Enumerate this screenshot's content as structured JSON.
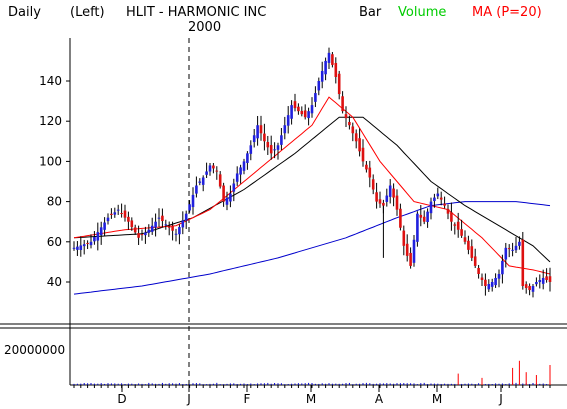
{
  "header": {
    "period": "Daily",
    "axis_side": "(Left)",
    "title": "HLIT - HARMONIC INC",
    "year_label": "2000",
    "legend": [
      {
        "label": "Bar",
        "color": "#000000"
      },
      {
        "label": "Volume",
        "color": "#00cc00"
      },
      {
        "label": "MA (P=20)",
        "color": "#ff0000"
      }
    ]
  },
  "colors": {
    "up": "#2020dd",
    "down": "#dd1010",
    "wick": "#000000",
    "ma_short": "#ff0000",
    "ma_mid": "#000000",
    "ma_long": "#0000cc",
    "volume": "#0000cc",
    "volume_spike": "#ff0000"
  },
  "chart_data": {
    "type": "candlestick",
    "title": "HLIT - HARMONIC INC",
    "x_months": [
      "D",
      "J",
      "F",
      "M",
      "A",
      "M",
      "J"
    ],
    "y_ticks": [
      40,
      60,
      80,
      100,
      120,
      140
    ],
    "ylim": [
      24,
      160
    ],
    "volume_tick": "20000000",
    "volume_ylim": [
      0,
      40000000
    ],
    "grid": false,
    "anchors": [
      [
        0,
        57
      ],
      [
        5,
        60
      ],
      [
        10,
        72
      ],
      [
        13,
        76
      ],
      [
        16,
        70
      ],
      [
        19,
        62
      ],
      [
        22,
        66
      ],
      [
        25,
        72
      ],
      [
        28,
        67
      ],
      [
        30,
        64
      ],
      [
        33,
        74
      ],
      [
        36,
        88
      ],
      [
        38,
        92
      ],
      [
        40,
        98
      ],
      [
        42,
        95
      ],
      [
        44,
        80
      ],
      [
        46,
        84
      ],
      [
        48,
        94
      ],
      [
        50,
        100
      ],
      [
        52,
        108
      ],
      [
        54,
        118
      ],
      [
        56,
        110
      ],
      [
        58,
        104
      ],
      [
        60,
        108
      ],
      [
        62,
        118
      ],
      [
        64,
        128
      ],
      [
        66,
        125
      ],
      [
        68,
        122
      ],
      [
        70,
        128
      ],
      [
        72,
        140
      ],
      [
        74,
        150
      ],
      [
        75,
        154
      ],
      [
        77,
        142
      ],
      [
        79,
        125
      ],
      [
        81,
        118
      ],
      [
        83,
        110
      ],
      [
        85,
        100
      ],
      [
        87,
        92
      ],
      [
        89,
        80
      ],
      [
        91,
        78
      ],
      [
        93,
        88
      ],
      [
        95,
        76
      ],
      [
        97,
        58
      ],
      [
        99,
        48
      ],
      [
        101,
        74
      ],
      [
        103,
        70
      ],
      [
        105,
        80
      ],
      [
        107,
        84
      ],
      [
        109,
        78
      ],
      [
        111,
        70
      ],
      [
        113,
        66
      ],
      [
        115,
        60
      ],
      [
        117,
        52
      ],
      [
        119,
        44
      ],
      [
        121,
        38
      ],
      [
        123,
        40
      ],
      [
        125,
        44
      ],
      [
        127,
        57
      ],
      [
        129,
        56
      ],
      [
        131,
        60
      ],
      [
        132,
        38
      ],
      [
        134,
        36
      ],
      [
        136,
        40
      ],
      [
        138,
        42
      ],
      [
        140,
        40
      ]
    ],
    "volume_spikes": [
      {
        "day": 113,
        "value": 8000000
      },
      {
        "day": 120,
        "value": 5000000
      },
      {
        "day": 129,
        "value": 12000000
      },
      {
        "day": 131,
        "value": 17000000
      },
      {
        "day": 133,
        "value": 9000000
      },
      {
        "day": 136,
        "value": 7000000
      },
      {
        "day": 140,
        "value": 14000000
      }
    ],
    "ma_long_anchors": [
      [
        0,
        34
      ],
      [
        20,
        38
      ],
      [
        40,
        44
      ],
      [
        60,
        52
      ],
      [
        80,
        62
      ],
      [
        95,
        72
      ],
      [
        105,
        78
      ],
      [
        115,
        80
      ],
      [
        130,
        80
      ],
      [
        140,
        78
      ]
    ],
    "ma_mid_anchors": [
      [
        0,
        62
      ],
      [
        20,
        64
      ],
      [
        35,
        72
      ],
      [
        50,
        86
      ],
      [
        65,
        104
      ],
      [
        78,
        122
      ],
      [
        85,
        122
      ],
      [
        95,
        108
      ],
      [
        105,
        90
      ],
      [
        115,
        78
      ],
      [
        125,
        68
      ],
      [
        135,
        58
      ],
      [
        140,
        50
      ]
    ],
    "ma_short_anchors": [
      [
        0,
        62
      ],
      [
        15,
        66
      ],
      [
        30,
        68
      ],
      [
        40,
        76
      ],
      [
        50,
        90
      ],
      [
        60,
        104
      ],
      [
        70,
        118
      ],
      [
        75,
        132
      ],
      [
        82,
        122
      ],
      [
        90,
        100
      ],
      [
        100,
        80
      ],
      [
        110,
        76
      ],
      [
        120,
        62
      ],
      [
        128,
        48
      ],
      [
        135,
        46
      ],
      [
        140,
        44
      ]
    ]
  }
}
